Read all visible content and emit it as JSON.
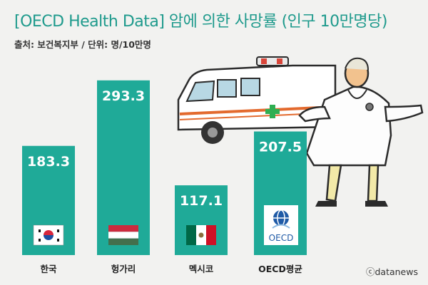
{
  "header": {
    "title": "[OECD Health Data] 암에 의한 사망률 (인구 10만명당)",
    "source": "출처: 보건복지부 / 단위: 명/10만명"
  },
  "credit": "ⓒdatanews",
  "flags": [
    "korea-flag-icon",
    "hungary-flag-icon",
    "mexico-flag-icon",
    "oecd-logo-icon"
  ],
  "oecd_logo_text": "OECD",
  "colors": {
    "bar": "#1faa98",
    "title": "#1e9a8c",
    "background": "#f2f2f0"
  },
  "chart_data": {
    "type": "bar",
    "categories": [
      "한국",
      "헝가리",
      "멕시코",
      "OECD평균"
    ],
    "values": [
      183.3,
      293.3,
      117.1,
      207.5
    ],
    "ylabel": "명/10만명",
    "legend": "none",
    "grid": false
  }
}
